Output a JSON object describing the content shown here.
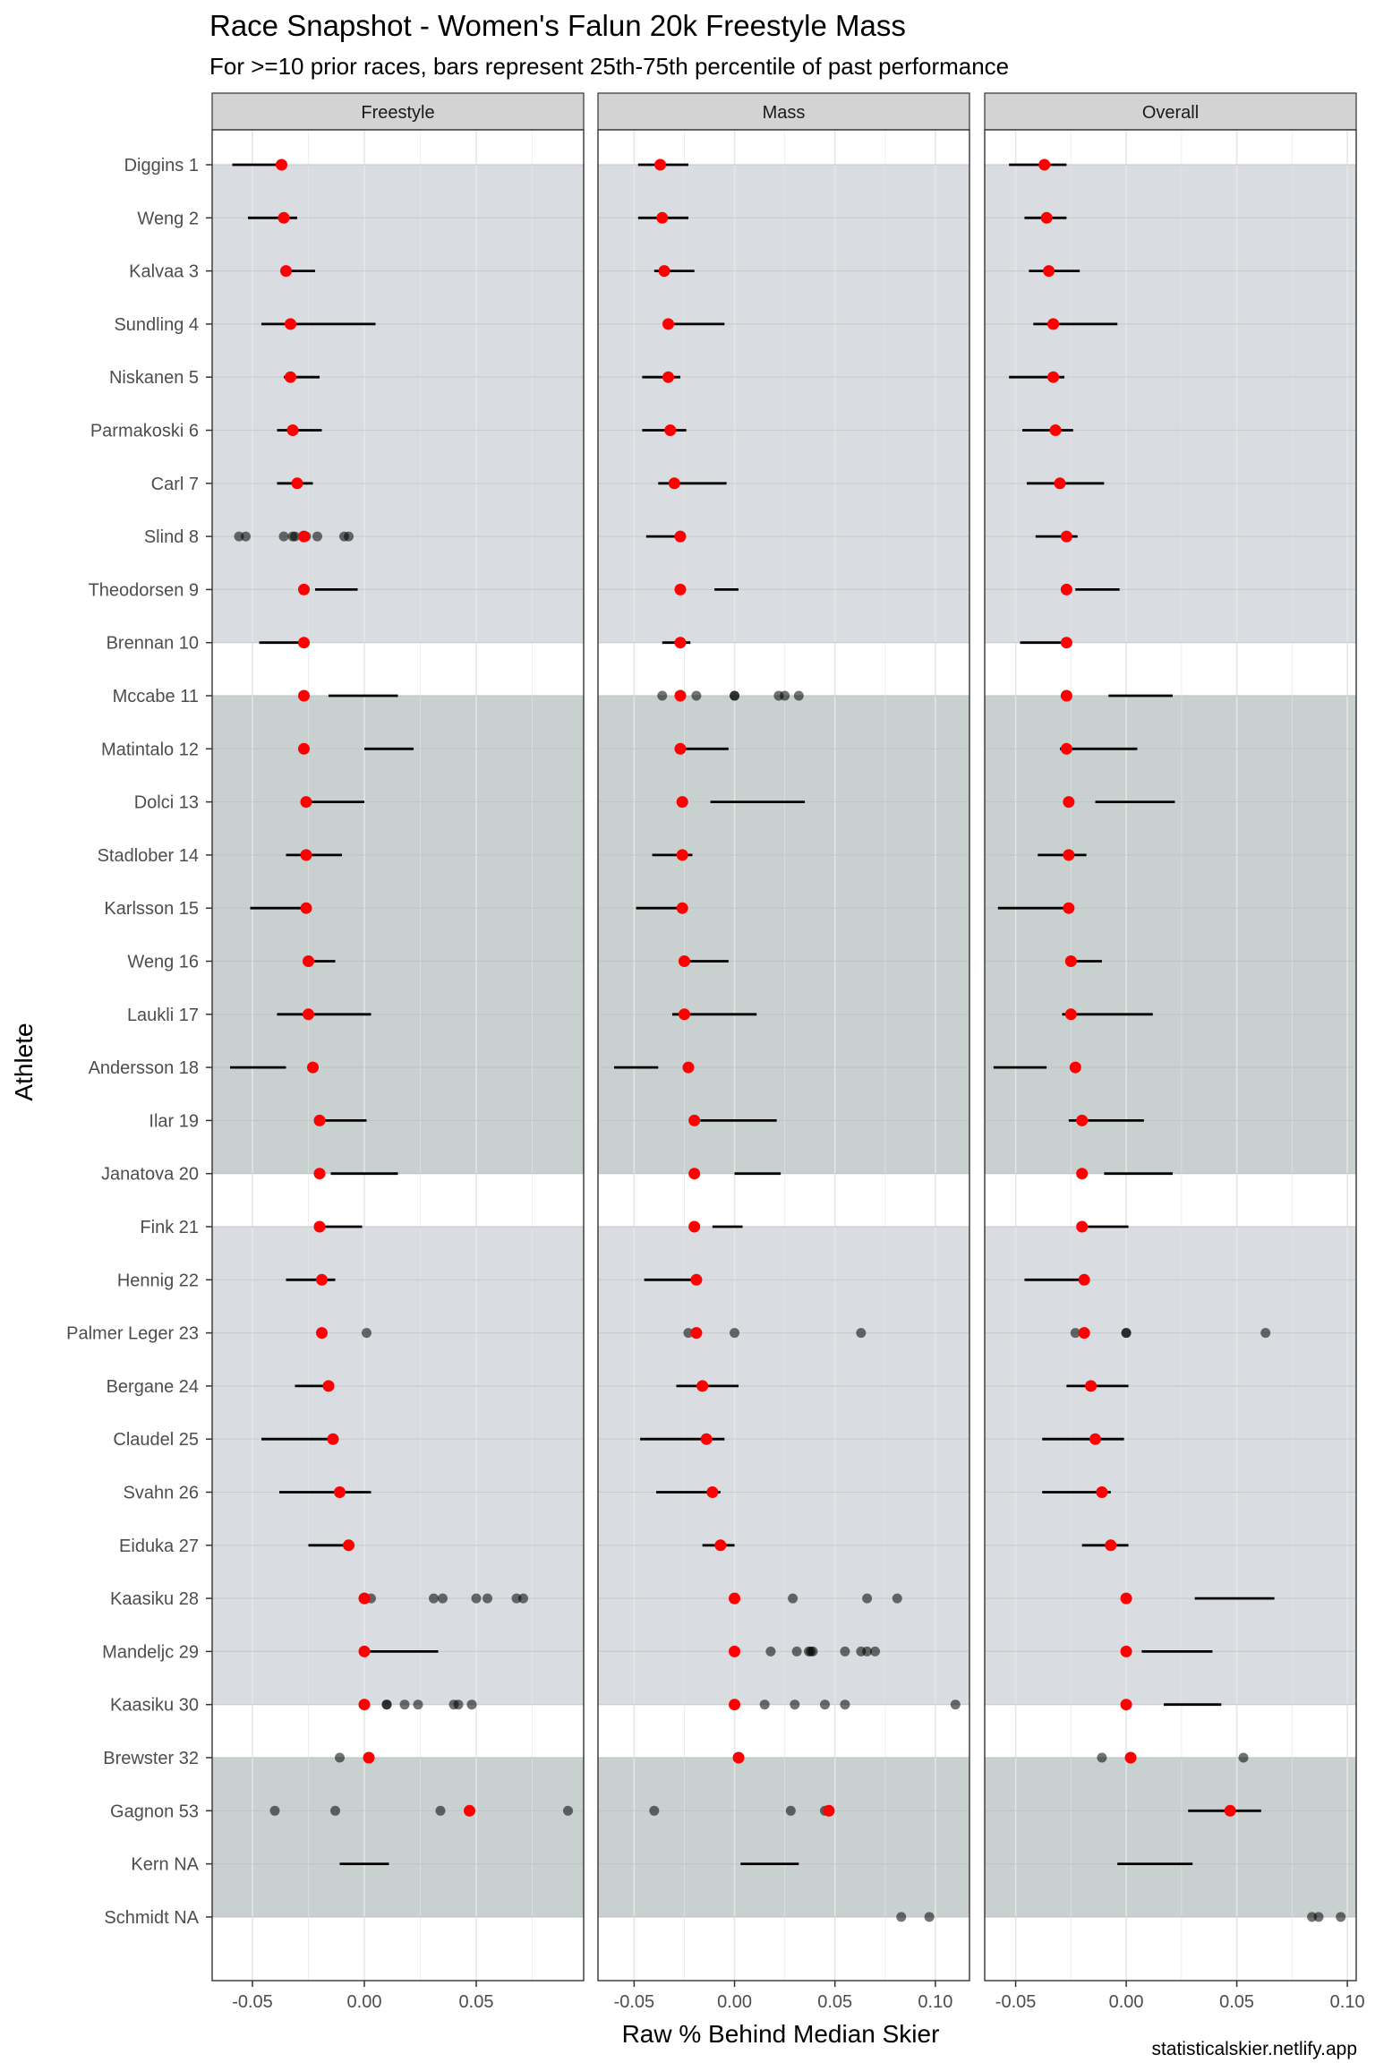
{
  "chart_data": {
    "type": "scatter",
    "title": "Race Snapshot -  Women's Falun 20k Freestyle Mass",
    "subtitle": "For >=10 prior races, bars represent 25th-75th percentile of past performance",
    "xlabel": "Raw % Behind Median Skier",
    "ylabel": "Athlete",
    "caption": "statisticalskier.netlify.app",
    "athletes": [
      "Diggins 1",
      "Weng 2",
      "Kalvaa 3",
      "Sundling 4",
      "Niskanen 5",
      "Parmakoski 6",
      "Carl 7",
      "Slind 8",
      "Theodorsen 9",
      "Brennan 10",
      "Mccabe 11",
      "Matintalo 12",
      "Dolci 13",
      "Stadlober 14",
      "Karlsson 15",
      "Weng 16",
      "Laukli 17",
      "Andersson 18",
      "Ilar 19",
      "Janatova 20",
      "Fink 21",
      "Hennig 22",
      "Palmer Leger 23",
      "Bergane 24",
      "Claudel 25",
      "Svahn 26",
      "Eiduka 27",
      "Kaasiku 28",
      "Mandeljc 29",
      "Kaasiku 30",
      "Brewster 32",
      "Gagnon 53",
      "Kern NA",
      "Schmidt NA"
    ],
    "band_groups": [
      {
        "from": 0,
        "to": 9,
        "shade": "light"
      },
      {
        "from": 10,
        "to": 19,
        "shade": "dark"
      },
      {
        "from": 20,
        "to": 29,
        "shade": "light"
      },
      {
        "from": 30,
        "to": 33,
        "shade": "dark"
      }
    ],
    "colors": {
      "band_light": "#D9DCE0",
      "band_dark": "#C8D0D0",
      "current": "#FF0000",
      "past": "#333333",
      "strip": "#D3D3D3"
    },
    "panels": [
      {
        "name": "Freestyle",
        "xlim": [
          -0.068,
          0.098
        ],
        "ticks": [
          -0.05,
          0.0,
          0.05
        ],
        "tick_labels": [
          "-0.05",
          "0.00",
          "0.05"
        ],
        "current": [
          -0.037,
          -0.036,
          -0.035,
          -0.033,
          -0.033,
          -0.032,
          -0.03,
          -0.027,
          -0.027,
          -0.027,
          -0.027,
          -0.027,
          -0.026,
          -0.026,
          -0.026,
          -0.025,
          -0.025,
          -0.023,
          -0.02,
          -0.02,
          -0.02,
          -0.019,
          -0.019,
          -0.016,
          -0.014,
          -0.011,
          -0.007,
          0.0,
          0.0,
          0.0,
          0.002,
          0.047,
          null,
          null
        ],
        "ranges": [
          [
            -0.059,
            -0.035
          ],
          [
            -0.052,
            -0.03
          ],
          [
            -0.036,
            -0.022
          ],
          [
            -0.046,
            0.005
          ],
          [
            -0.036,
            -0.02
          ],
          [
            -0.039,
            -0.019
          ],
          [
            -0.039,
            -0.023
          ],
          null,
          [
            -0.022,
            -0.003
          ],
          [
            -0.047,
            -0.028
          ],
          [
            -0.016,
            0.015
          ],
          [
            0.0,
            0.022
          ],
          [
            -0.027,
            0.0
          ],
          [
            -0.035,
            -0.01
          ],
          [
            -0.051,
            -0.026
          ],
          [
            -0.025,
            -0.013
          ],
          [
            -0.039,
            0.003
          ],
          [
            -0.06,
            -0.035
          ],
          [
            -0.02,
            0.001
          ],
          [
            -0.015,
            0.015
          ],
          [
            -0.022,
            -0.001
          ],
          [
            -0.035,
            -0.013
          ],
          null,
          [
            -0.031,
            -0.015
          ],
          [
            -0.046,
            -0.014
          ],
          [
            -0.038,
            0.003
          ],
          [
            -0.025,
            -0.005
          ],
          null,
          [
            0.0,
            0.033
          ],
          null,
          null,
          null,
          [
            -0.011,
            0.011
          ],
          null
        ],
        "past": [
          [],
          [],
          [],
          [],
          [],
          [],
          [],
          [
            -0.056,
            -0.053,
            -0.036,
            -0.032,
            -0.031,
            -0.026,
            -0.021,
            -0.009,
            -0.007
          ],
          [],
          [],
          [],
          [],
          [],
          [],
          [],
          [],
          [],
          [],
          [],
          [],
          [],
          [],
          [
            0.001
          ],
          [],
          [],
          [],
          [],
          [
            0.003,
            0.031,
            0.035,
            0.05,
            0.055,
            0.068,
            0.071
          ],
          [],
          [
            0.01,
            0.01,
            0.018,
            0.024,
            0.04,
            0.042,
            0.048
          ],
          [
            -0.011
          ],
          [
            -0.04,
            -0.013,
            0.034,
            0.091
          ],
          [],
          []
        ]
      },
      {
        "name": "Mass",
        "xlim": [
          -0.068,
          0.117
        ],
        "ticks": [
          -0.05,
          0.0,
          0.05,
          0.1
        ],
        "tick_labels": [
          "-0.05",
          "0.00",
          "0.05",
          "0.10"
        ],
        "current": [
          -0.037,
          -0.036,
          -0.035,
          -0.033,
          -0.033,
          -0.032,
          -0.03,
          -0.027,
          -0.027,
          -0.027,
          -0.027,
          -0.027,
          -0.026,
          -0.026,
          -0.026,
          -0.025,
          -0.025,
          -0.023,
          -0.02,
          -0.02,
          -0.02,
          -0.019,
          -0.019,
          -0.016,
          -0.014,
          -0.011,
          -0.007,
          0.0,
          0.0,
          0.0,
          0.002,
          0.047,
          null,
          null
        ],
        "ranges": [
          [
            -0.048,
            -0.023
          ],
          [
            -0.048,
            -0.023
          ],
          [
            -0.04,
            -0.02
          ],
          [
            -0.034,
            -0.005
          ],
          [
            -0.046,
            -0.027
          ],
          [
            -0.046,
            -0.024
          ],
          [
            -0.038,
            -0.004
          ],
          [
            -0.044,
            -0.027
          ],
          [
            -0.01,
            0.002
          ],
          [
            -0.036,
            -0.022
          ],
          null,
          [
            -0.029,
            -0.003
          ],
          [
            -0.012,
            0.035
          ],
          [
            -0.041,
            -0.021
          ],
          [
            -0.049,
            -0.027
          ],
          [
            -0.026,
            -0.003
          ],
          [
            -0.031,
            0.011
          ],
          [
            -0.06,
            -0.038
          ],
          [
            -0.017,
            0.021
          ],
          [
            0.0,
            0.023
          ],
          [
            -0.011,
            0.004
          ],
          [
            -0.045,
            -0.02
          ],
          null,
          [
            -0.029,
            0.002
          ],
          [
            -0.047,
            -0.005
          ],
          [
            -0.039,
            -0.007
          ],
          [
            -0.016,
            0.0
          ],
          null,
          null,
          null,
          null,
          null,
          [
            0.003,
            0.032
          ],
          null
        ],
        "past": [
          [],
          [],
          [],
          [],
          [],
          [],
          [],
          [],
          [],
          [],
          [
            -0.036,
            -0.019,
            0.0,
            0.0,
            0.022,
            0.025,
            0.032
          ],
          [],
          [],
          [],
          [],
          [],
          [],
          [],
          [],
          [],
          [],
          [],
          [
            -0.023,
            0.0,
            0.063
          ],
          [],
          [],
          [],
          [],
          [
            0.029,
            0.066,
            0.081
          ],
          [
            0.018,
            0.031,
            0.037,
            0.038,
            0.039,
            0.055,
            0.063,
            0.066,
            0.07
          ],
          [
            0.015,
            0.03,
            0.045,
            0.055,
            0.11
          ],
          [],
          [
            -0.04,
            0.028,
            0.045
          ],
          [],
          [
            0.083,
            0.097
          ]
        ]
      },
      {
        "name": "Overall",
        "xlim": [
          -0.064,
          0.104
        ],
        "ticks": [
          -0.05,
          0.0,
          0.05,
          0.1
        ],
        "tick_labels": [
          "-0.05",
          "0.00",
          "0.05",
          "0.10"
        ],
        "current": [
          -0.037,
          -0.036,
          -0.035,
          -0.033,
          -0.033,
          -0.032,
          -0.03,
          -0.027,
          -0.027,
          -0.027,
          -0.027,
          -0.027,
          -0.026,
          -0.026,
          -0.026,
          -0.025,
          -0.025,
          -0.023,
          -0.02,
          -0.02,
          -0.02,
          -0.019,
          -0.019,
          -0.016,
          -0.014,
          -0.011,
          -0.007,
          0.0,
          0.0,
          0.0,
          0.002,
          0.047,
          null,
          null
        ],
        "ranges": [
          [
            -0.053,
            -0.027
          ],
          [
            -0.046,
            -0.027
          ],
          [
            -0.044,
            -0.021
          ],
          [
            -0.042,
            -0.004
          ],
          [
            -0.053,
            -0.028
          ],
          [
            -0.047,
            -0.024
          ],
          [
            -0.045,
            -0.01
          ],
          [
            -0.041,
            -0.022
          ],
          [
            -0.023,
            -0.003
          ],
          [
            -0.048,
            -0.027
          ],
          [
            -0.008,
            0.021
          ],
          [
            -0.03,
            0.005
          ],
          [
            -0.014,
            0.022
          ],
          [
            -0.04,
            -0.018
          ],
          [
            -0.058,
            -0.027
          ],
          [
            -0.025,
            -0.011
          ],
          [
            -0.029,
            0.012
          ],
          [
            -0.06,
            -0.036
          ],
          [
            -0.026,
            0.008
          ],
          [
            -0.01,
            0.021
          ],
          [
            -0.022,
            0.001
          ],
          [
            -0.046,
            -0.02
          ],
          null,
          [
            -0.027,
            0.001
          ],
          [
            -0.038,
            -0.001
          ],
          [
            -0.038,
            -0.007
          ],
          [
            -0.02,
            0.001
          ],
          [
            0.031,
            0.067
          ],
          [
            0.007,
            0.039
          ],
          [
            0.017,
            0.043
          ],
          null,
          [
            0.028,
            0.061
          ],
          [
            -0.004,
            0.03
          ],
          null
        ],
        "past": [
          [],
          [],
          [],
          [],
          [],
          [],
          [],
          [],
          [],
          [],
          [],
          [],
          [],
          [],
          [],
          [],
          [],
          [],
          [],
          [],
          [],
          [],
          [
            -0.023,
            0.0,
            0.0,
            0.063
          ],
          [],
          [],
          [],
          [],
          [],
          [],
          [],
          [
            -0.011,
            0.053
          ],
          [],
          [],
          [
            0.084,
            0.087,
            0.097
          ]
        ]
      }
    ]
  }
}
